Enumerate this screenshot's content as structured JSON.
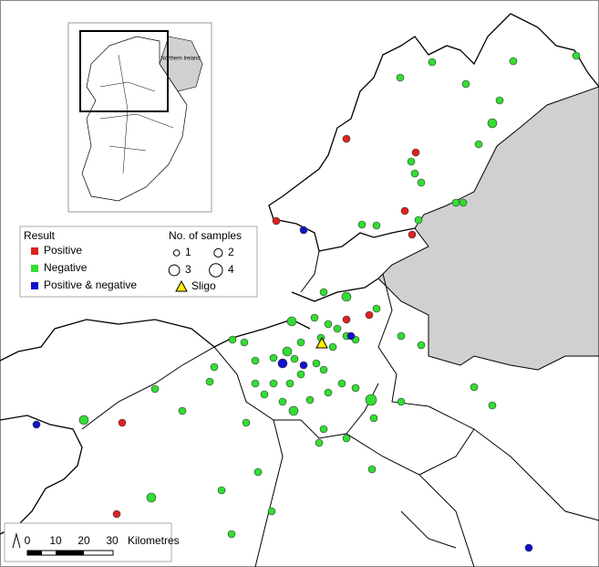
{
  "legend": {
    "result_title": "Result",
    "results": [
      "Positive",
      "Negative",
      "Positive & negative"
    ],
    "samples_title": "No. of samples",
    "samples": [
      1,
      2,
      3,
      4
    ],
    "site": "Sligo"
  },
  "scale_bar": {
    "ticks": [
      0,
      10,
      20,
      30
    ],
    "unit": "Kilometres"
  },
  "inset": {
    "label": "Northern Ireland"
  }
}
